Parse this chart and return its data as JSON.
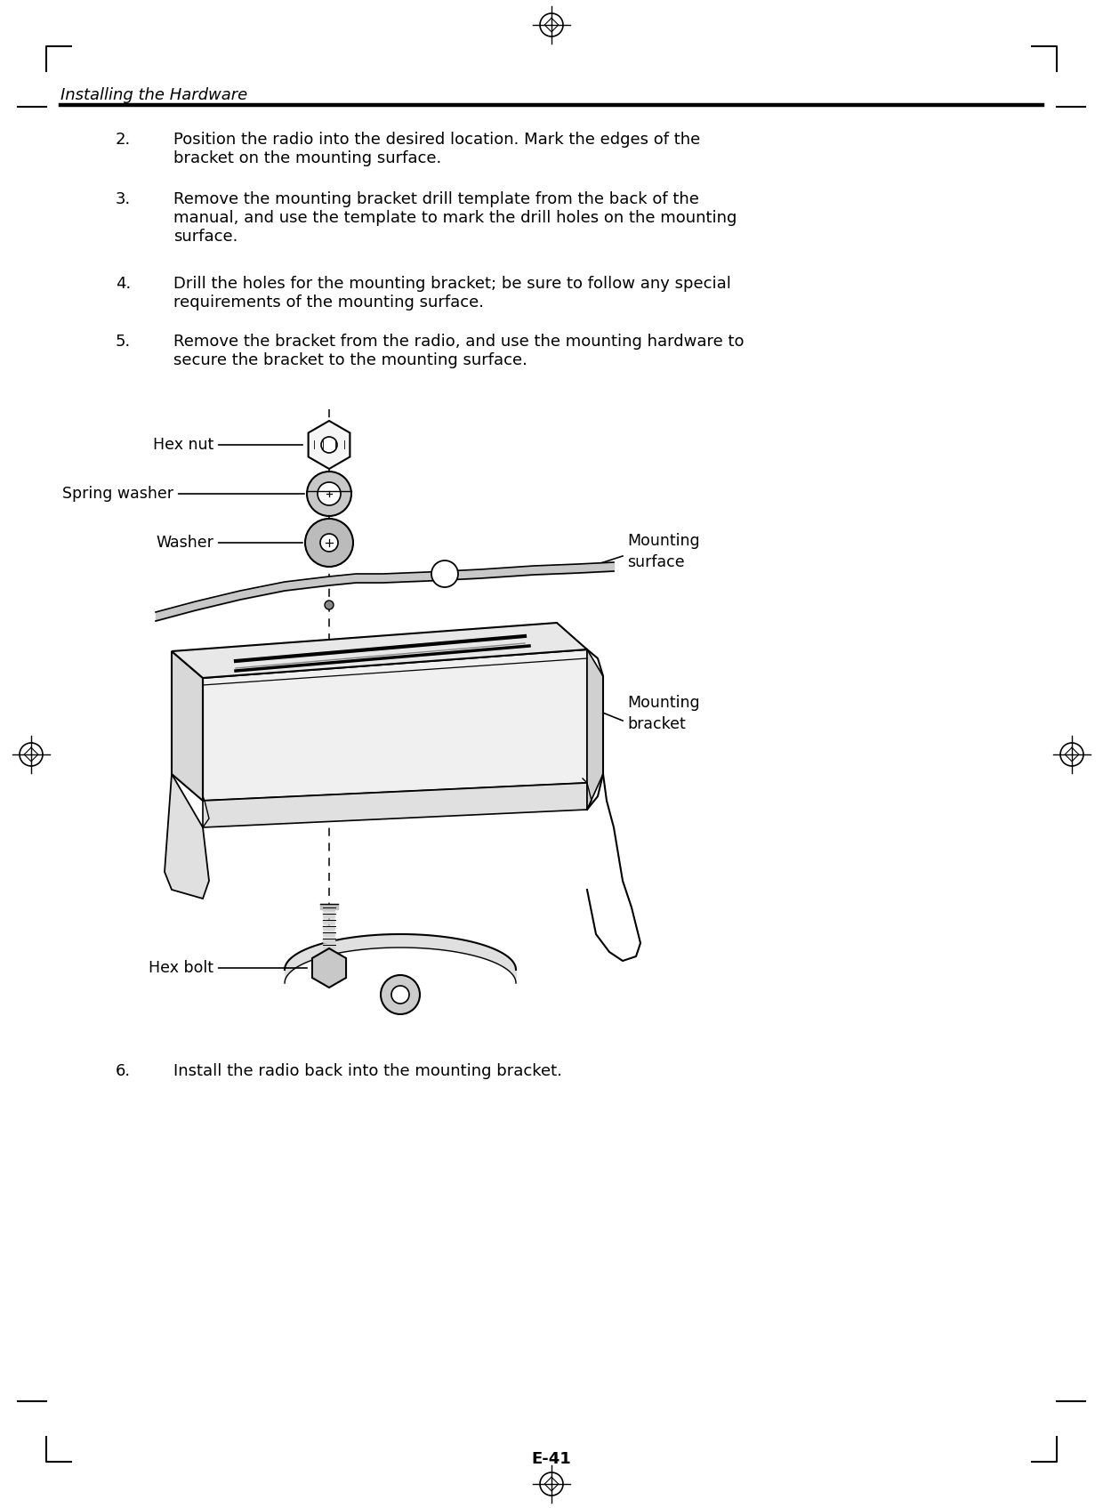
{
  "page_title": "Installing the Hardware",
  "page_number": "E-41",
  "background_color": "#ffffff",
  "items": [
    {
      "num": "2.",
      "text1": "Position the radio into the desired location. Mark the edges of the",
      "text2": "bracket on the mounting surface.",
      "text3": ""
    },
    {
      "num": "3.",
      "text1": "Remove the mounting bracket drill template from the back of the",
      "text2": "manual, and use the template to mark the drill holes on the mounting",
      "text3": "surface."
    },
    {
      "num": "4.",
      "text1": "Drill the holes for the mounting bracket; be sure to follow any special",
      "text2": "requirements of the mounting surface.",
      "text3": ""
    },
    {
      "num": "5.",
      "text1": "Remove the bracket from the radio, and use the mounting hardware to",
      "text2": "secure the bracket to the mounting surface.",
      "text3": ""
    },
    {
      "num": "6.",
      "text1": "Install the radio back into the mounting bracket.",
      "text2": "",
      "text3": ""
    }
  ],
  "font_size_body": 13,
  "font_size_title": 13,
  "font_size_diagram": 12.5
}
